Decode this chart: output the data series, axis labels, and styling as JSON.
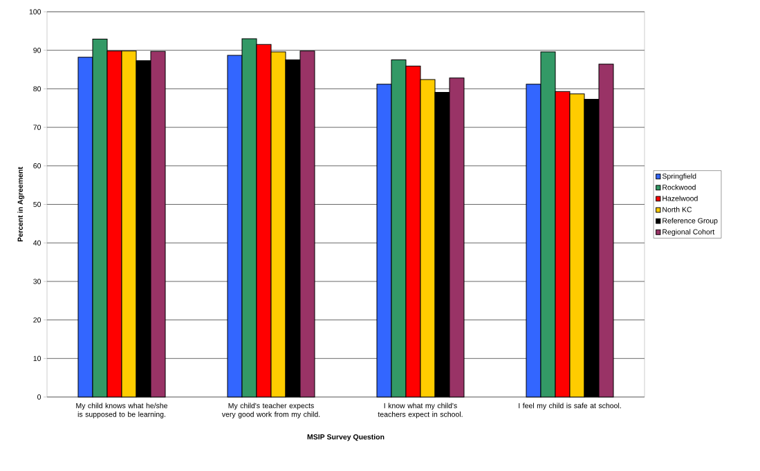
{
  "chart_data": {
    "type": "bar",
    "xlabel": "MSIP Survey Question",
    "ylabel": "Percent in Agreement",
    "categories": [
      "My child knows what he/she is supposed to be learning.",
      "My child's teacher expects very good work from my child.",
      "I know what my child's teachers expect in school.",
      "I feel my child is safe at school."
    ],
    "series": [
      {
        "name": "Springfield",
        "color": "#3366ff",
        "values": [
          88.2,
          88.7,
          81.2,
          81.2
        ]
      },
      {
        "name": "Rockwood",
        "color": "#339966",
        "values": [
          92.9,
          93.0,
          87.5,
          89.6
        ]
      },
      {
        "name": "Hazelwood",
        "color": "#ff0000",
        "values": [
          89.8,
          91.5,
          85.9,
          79.3
        ]
      },
      {
        "name": "North KC",
        "color": "#ffcc00",
        "values": [
          89.8,
          89.6,
          82.4,
          78.7
        ]
      },
      {
        "name": "Reference Group",
        "color": "#000000",
        "values": [
          87.3,
          87.5,
          79.1,
          77.3
        ]
      },
      {
        "name": "Regional Cohort",
        "color": "#993366",
        "values": [
          89.7,
          89.8,
          82.8,
          86.4
        ]
      }
    ],
    "ylim": [
      0,
      100
    ],
    "yticks": [
      0,
      10,
      20,
      30,
      40,
      50,
      60,
      70,
      80,
      90,
      100
    ],
    "grid": "y",
    "legend": "right"
  }
}
